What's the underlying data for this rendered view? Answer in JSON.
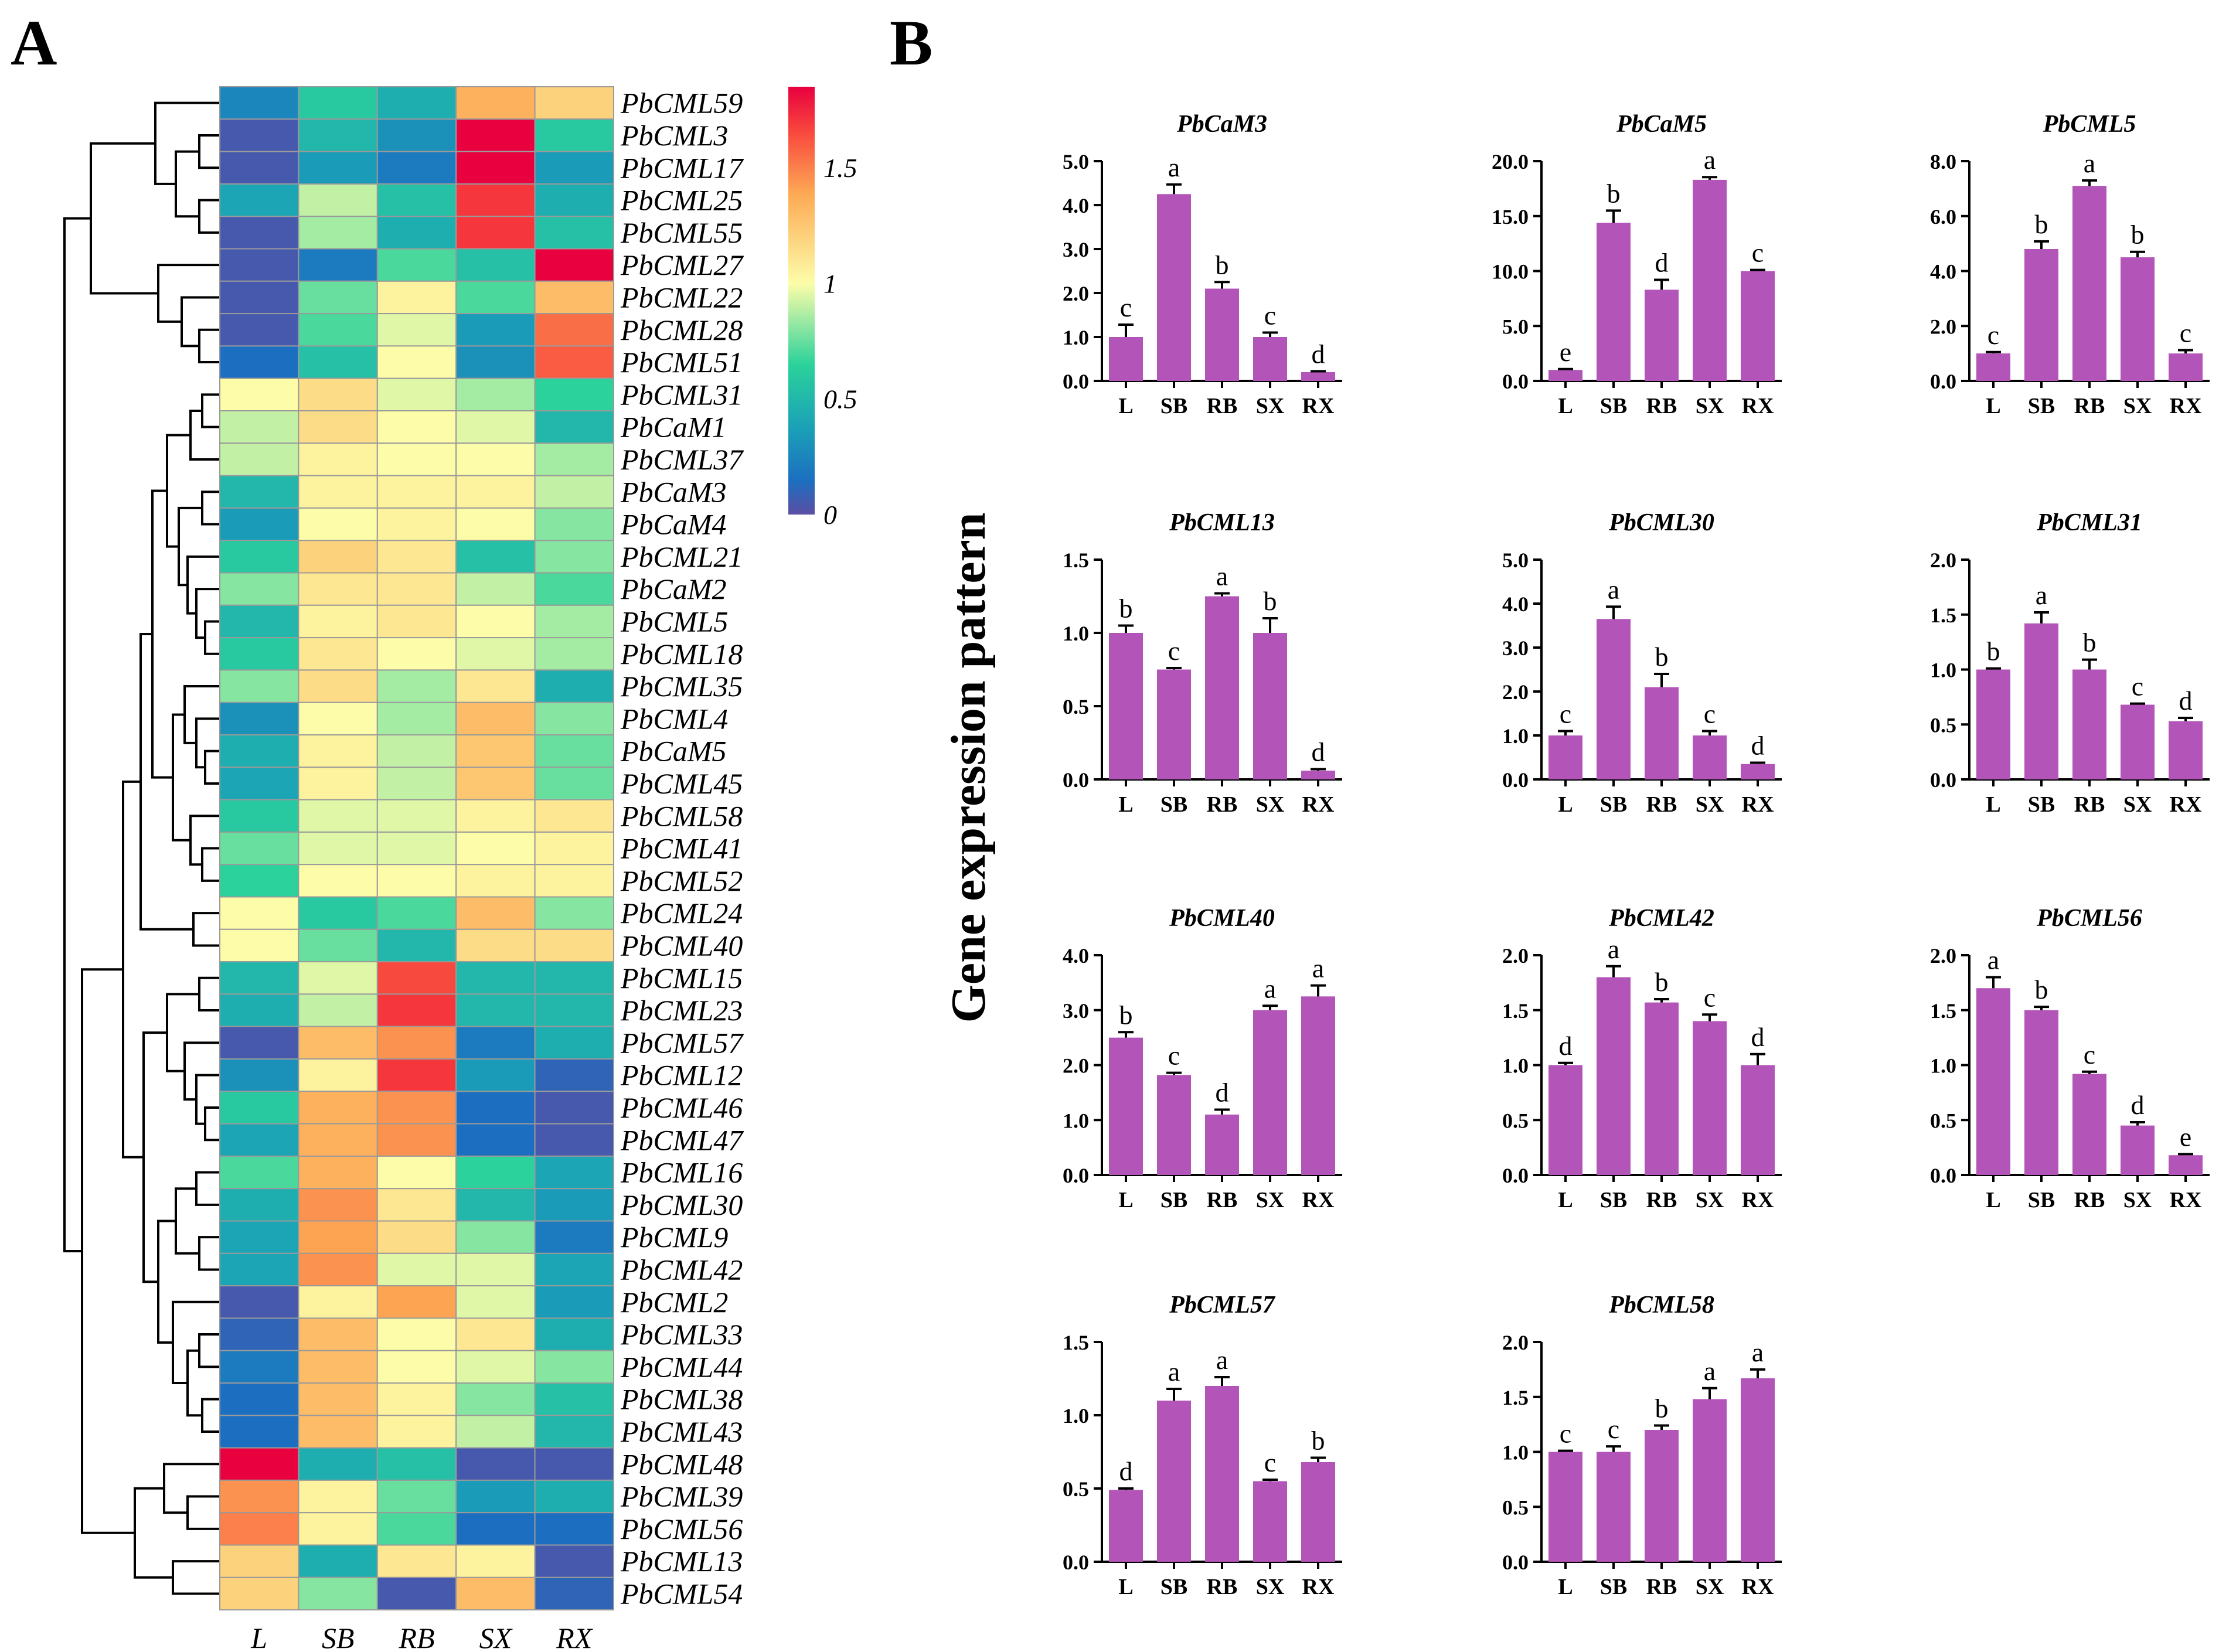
{
  "panel_a": {
    "label": "A",
    "column_labels": [
      "L",
      "SB",
      "RB",
      "SX",
      "RX"
    ],
    "colorbar": {
      "ticks": [
        "1.5",
        "1",
        "0.5",
        "0"
      ],
      "tick_values": [
        1.5,
        1,
        0.5,
        0
      ],
      "min": 0,
      "max": 1.85,
      "colors": [
        "#5b4ea3",
        "#1c6fc0",
        "#1aa0b7",
        "#2bd29b",
        "#fdfda9",
        "#fda954",
        "#f8443d",
        "#e8003f"
      ]
    }
  },
  "panel_b": {
    "label": "B",
    "y_axis_title": "Gene expression pattern",
    "bar_color": "#b355b8"
  },
  "chart_data": [
    {
      "type": "heatmap",
      "panel": "A",
      "title": "",
      "columns": [
        "L",
        "SB",
        "RB",
        "SX",
        "RX"
      ],
      "rows": [
        "PbCML59",
        "PbCML3",
        "PbCML17",
        "PbCML25",
        "PbCML55",
        "PbCML27",
        "PbCML22",
        "PbCML28",
        "PbCML51",
        "PbCML31",
        "PbCaM1",
        "PbCML37",
        "PbCaM3",
        "PbCaM4",
        "PbCML21",
        "PbCaM2",
        "PbCML5",
        "PbCML18",
        "PbCML35",
        "PbCML4",
        "PbCaM5",
        "PbCML45",
        "PbCML58",
        "PbCML41",
        "PbCML52",
        "PbCML24",
        "PbCML40",
        "PbCML15",
        "PbCML23",
        "PbCML57",
        "PbCML12",
        "PbCML46",
        "PbCML47",
        "PbCML16",
        "PbCML30",
        "PbCML9",
        "PbCML42",
        "PbCML2",
        "PbCML33",
        "PbCML44",
        "PbCML38",
        "PbCML43",
        "PbCML48",
        "PbCML39",
        "PbCML56",
        "PbCML13",
        "PbCML54"
      ],
      "values": [
        [
          0.25,
          0.6,
          0.45,
          1.35,
          1.2
        ],
        [
          0.05,
          0.5,
          0.3,
          1.85,
          0.6
        ],
        [
          0.05,
          0.35,
          0.2,
          1.85,
          0.35
        ],
        [
          0.4,
          0.9,
          0.55,
          1.7,
          0.45
        ],
        [
          0.05,
          0.85,
          0.45,
          1.7,
          0.55
        ],
        [
          0.05,
          0.2,
          0.7,
          0.55,
          1.85
        ],
        [
          0.05,
          0.75,
          1.05,
          0.7,
          1.3
        ],
        [
          0.05,
          0.7,
          0.95,
          0.35,
          1.55
        ],
        [
          0.15,
          0.55,
          1.0,
          0.3,
          1.6
        ],
        [
          1.0,
          1.15,
          0.95,
          0.85,
          0.65
        ],
        [
          0.9,
          1.15,
          1.0,
          0.95,
          0.5
        ],
        [
          0.9,
          1.05,
          1.0,
          1.0,
          0.85
        ],
        [
          0.5,
          1.05,
          1.05,
          1.05,
          0.9
        ],
        [
          0.35,
          1.0,
          1.05,
          1.0,
          0.8
        ],
        [
          0.6,
          1.2,
          1.1,
          0.55,
          0.8
        ],
        [
          0.8,
          1.1,
          1.1,
          0.9,
          0.7
        ],
        [
          0.5,
          1.05,
          1.1,
          1.0,
          0.85
        ],
        [
          0.6,
          1.1,
          1.0,
          0.95,
          0.85
        ],
        [
          0.8,
          1.15,
          0.85,
          1.1,
          0.45
        ],
        [
          0.3,
          1.0,
          0.85,
          1.3,
          0.8
        ],
        [
          0.45,
          1.05,
          0.9,
          1.25,
          0.75
        ],
        [
          0.4,
          1.05,
          0.9,
          1.25,
          0.75
        ],
        [
          0.6,
          0.95,
          0.95,
          1.05,
          1.1
        ],
        [
          0.75,
          0.95,
          0.95,
          1.0,
          1.05
        ],
        [
          0.65,
          1.0,
          1.0,
          1.05,
          1.05
        ],
        [
          1.0,
          0.6,
          0.7,
          1.3,
          0.8
        ],
        [
          1.0,
          0.75,
          0.5,
          1.15,
          1.15
        ],
        [
          0.5,
          0.95,
          1.65,
          0.5,
          0.5
        ],
        [
          0.45,
          0.9,
          1.7,
          0.5,
          0.5
        ],
        [
          0.05,
          1.3,
          1.45,
          0.2,
          0.45
        ],
        [
          0.3,
          1.05,
          1.7,
          0.35,
          0.1
        ],
        [
          0.6,
          1.35,
          1.45,
          0.15,
          0.05
        ],
        [
          0.4,
          1.35,
          1.45,
          0.15,
          0.05
        ],
        [
          0.7,
          1.35,
          1.0,
          0.65,
          0.4
        ],
        [
          0.45,
          1.45,
          1.1,
          0.5,
          0.35
        ],
        [
          0.4,
          1.4,
          1.15,
          0.8,
          0.2
        ],
        [
          0.4,
          1.45,
          0.95,
          0.95,
          0.4
        ],
        [
          0.05,
          1.05,
          1.4,
          0.95,
          0.35
        ],
        [
          0.1,
          1.3,
          1.0,
          1.1,
          0.45
        ],
        [
          0.2,
          1.3,
          1.0,
          0.95,
          0.8
        ],
        [
          0.15,
          1.3,
          1.05,
          0.8,
          0.55
        ],
        [
          0.15,
          1.3,
          1.05,
          0.9,
          0.5
        ],
        [
          1.85,
          0.45,
          0.55,
          0.05,
          0.05
        ],
        [
          1.45,
          1.05,
          0.75,
          0.35,
          0.45
        ],
        [
          1.5,
          1.05,
          0.7,
          0.15,
          0.15
        ],
        [
          1.2,
          0.45,
          1.1,
          1.05,
          0.05
        ],
        [
          1.2,
          0.8,
          0.05,
          1.3,
          0.1
        ]
      ]
    },
    {
      "type": "bar",
      "panel": "B",
      "title": "PbCaM3",
      "categories": [
        "L",
        "SB",
        "RB",
        "SX",
        "RX"
      ],
      "values": [
        1.0,
        4.25,
        2.1,
        1.0,
        0.2
      ],
      "errors": [
        0.28,
        0.22,
        0.15,
        0.1,
        0.02
      ],
      "letters": [
        "c",
        "a",
        "b",
        "c",
        "d"
      ],
      "ylim": [
        0,
        5.0
      ],
      "yticks": [
        "0.0",
        "1.0",
        "2.0",
        "3.0",
        "4.0",
        "5.0"
      ]
    },
    {
      "type": "bar",
      "panel": "B",
      "title": "PbCaM5",
      "categories": [
        "L",
        "SB",
        "RB",
        "SX",
        "RX"
      ],
      "values": [
        1.0,
        14.4,
        8.3,
        18.3,
        10.0
      ],
      "errors": [
        0.08,
        1.1,
        0.9,
        0.25,
        0.1
      ],
      "letters": [
        "e",
        "b",
        "d",
        "a",
        "c"
      ],
      "ylim": [
        0,
        20.0
      ],
      "yticks": [
        "0.0",
        "5.0",
        "10.0",
        "15.0",
        "20.0"
      ]
    },
    {
      "type": "bar",
      "panel": "B",
      "title": "PbCML5",
      "categories": [
        "L",
        "SB",
        "RB",
        "SX",
        "RX"
      ],
      "values": [
        1.0,
        4.8,
        7.1,
        4.5,
        1.0
      ],
      "errors": [
        0.05,
        0.28,
        0.2,
        0.2,
        0.12
      ],
      "letters": [
        "c",
        "b",
        "a",
        "b",
        "c"
      ],
      "ylim": [
        0,
        8.0
      ],
      "yticks": [
        "0.0",
        "2.0",
        "4.0",
        "6.0",
        "8.0"
      ]
    },
    {
      "type": "bar",
      "panel": "B",
      "title": "PbCML13",
      "categories": [
        "L",
        "SB",
        "RB",
        "SX",
        "RX"
      ],
      "values": [
        1.0,
        0.75,
        1.25,
        1.0,
        0.06
      ],
      "errors": [
        0.05,
        0.01,
        0.02,
        0.1,
        0.01
      ],
      "letters": [
        "b",
        "c",
        "a",
        "b",
        "d"
      ],
      "ylim": [
        0,
        1.5
      ],
      "yticks": [
        "0.0",
        "0.5",
        "1.0",
        "1.5"
      ]
    },
    {
      "type": "bar",
      "panel": "B",
      "title": "PbCML30",
      "categories": [
        "L",
        "SB",
        "RB",
        "SX",
        "RX"
      ],
      "values": [
        1.0,
        3.65,
        2.1,
        1.0,
        0.35
      ],
      "errors": [
        0.1,
        0.28,
        0.3,
        0.1,
        0.03
      ],
      "letters": [
        "c",
        "a",
        "b",
        "c",
        "d"
      ],
      "ylim": [
        0,
        5.0
      ],
      "yticks": [
        "0.0",
        "1.0",
        "2.0",
        "3.0",
        "4.0",
        "5.0"
      ]
    },
    {
      "type": "bar",
      "panel": "B",
      "title": "PbCML31",
      "categories": [
        "L",
        "SB",
        "RB",
        "SX",
        "RX"
      ],
      "values": [
        1.0,
        1.42,
        1.0,
        0.68,
        0.53
      ],
      "errors": [
        0.01,
        0.1,
        0.09,
        0.01,
        0.03
      ],
      "letters": [
        "b",
        "a",
        "b",
        "c",
        "d"
      ],
      "ylim": [
        0,
        2.0
      ],
      "yticks": [
        "0.0",
        "0.5",
        "1.0",
        "1.5",
        "2.0"
      ]
    },
    {
      "type": "bar",
      "panel": "B",
      "title": "PbCML40",
      "categories": [
        "L",
        "SB",
        "RB",
        "SX",
        "RX"
      ],
      "values": [
        2.5,
        1.82,
        1.1,
        3.0,
        3.25
      ],
      "errors": [
        0.1,
        0.04,
        0.09,
        0.08,
        0.2
      ],
      "letters": [
        "b",
        "c",
        "d",
        "a",
        "a"
      ],
      "ylim": [
        0,
        4.0
      ],
      "yticks": [
        "0.0",
        "1.0",
        "2.0",
        "3.0",
        "4.0"
      ]
    },
    {
      "type": "bar",
      "panel": "B",
      "title": "PbCML42",
      "categories": [
        "L",
        "SB",
        "RB",
        "SX",
        "RX"
      ],
      "values": [
        1.0,
        1.8,
        1.57,
        1.4,
        1.0
      ],
      "errors": [
        0.02,
        0.1,
        0.03,
        0.06,
        0.1
      ],
      "letters": [
        "d",
        "a",
        "b",
        "c",
        "d"
      ],
      "ylim": [
        0,
        2.0
      ],
      "yticks": [
        "0.0",
        "0.5",
        "1.0",
        "1.5",
        "2.0"
      ]
    },
    {
      "type": "bar",
      "panel": "B",
      "title": "PbCML56",
      "categories": [
        "L",
        "SB",
        "RB",
        "SX",
        "RX"
      ],
      "values": [
        1.7,
        1.5,
        0.92,
        0.45,
        0.18
      ],
      "errors": [
        0.1,
        0.03,
        0.02,
        0.03,
        0.01
      ],
      "letters": [
        "a",
        "b",
        "c",
        "d",
        "e"
      ],
      "ylim": [
        0,
        2.0
      ],
      "yticks": [
        "0.0",
        "0.5",
        "1.0",
        "1.5",
        "2.0"
      ]
    },
    {
      "type": "bar",
      "panel": "B",
      "title": "PbCML57",
      "categories": [
        "L",
        "SB",
        "RB",
        "SX",
        "RX"
      ],
      "values": [
        0.49,
        1.1,
        1.2,
        0.55,
        0.68
      ],
      "errors": [
        0.01,
        0.08,
        0.06,
        0.01,
        0.03
      ],
      "letters": [
        "d",
        "a",
        "a",
        "c",
        "b"
      ],
      "ylim": [
        0,
        1.5
      ],
      "yticks": [
        "0.0",
        "0.5",
        "1.0",
        "1.5"
      ]
    },
    {
      "type": "bar",
      "panel": "B",
      "title": "PbCML58",
      "categories": [
        "L",
        "SB",
        "RB",
        "SX",
        "RX"
      ],
      "values": [
        1.0,
        1.0,
        1.2,
        1.48,
        1.67
      ],
      "errors": [
        0.01,
        0.05,
        0.04,
        0.1,
        0.08
      ],
      "letters": [
        "c",
        "c",
        "b",
        "a",
        "a"
      ],
      "ylim": [
        0,
        2.0
      ],
      "yticks": [
        "0.0",
        "0.5",
        "1.0",
        "1.5",
        "2.0"
      ]
    }
  ]
}
